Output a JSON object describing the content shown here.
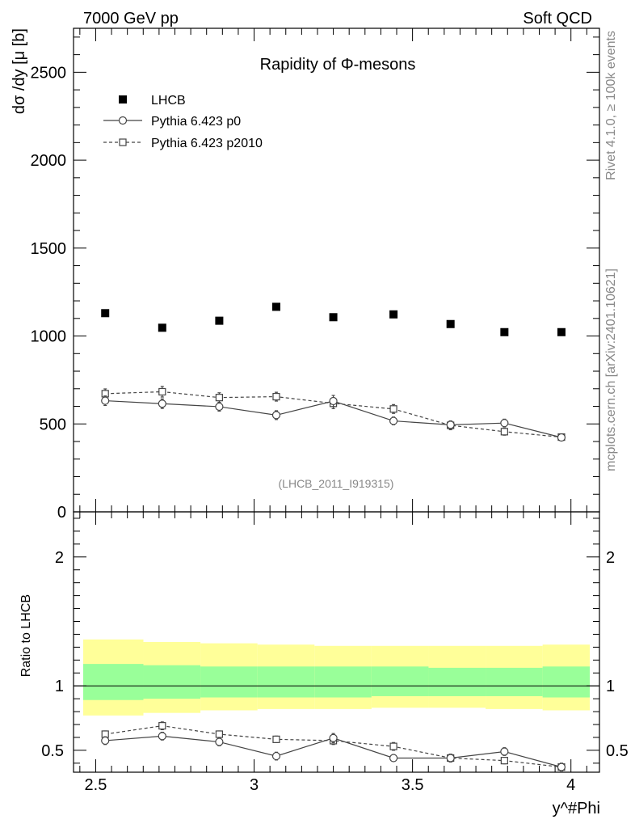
{
  "header": {
    "left": "7000 GeV pp",
    "right": "Soft QCD"
  },
  "side_labels": {
    "rivet": "Rivet 4.1.0, ≥ 100k events",
    "mcplots": "mcplots.cern.ch [arXiv:2401.10621]"
  },
  "chart_data": [
    {
      "type": "scatter",
      "title": "Rapidity of Φ-mesons",
      "xlabel": "y^#Phi",
      "ylabel": "dσ /dy [μ [b]",
      "xlim": [
        2.43,
        4.09
      ],
      "ylim": [
        0,
        2750
      ],
      "yticks": [
        0,
        500,
        1000,
        1500,
        2000,
        2500
      ],
      "ytick_labels": [
        "0",
        "500",
        "1000",
        "1500",
        "2000",
        "2500"
      ],
      "analysis_id": "(LHCB_2011_I919315)",
      "x": [
        2.53,
        2.71,
        2.89,
        3.07,
        3.25,
        3.44,
        3.62,
        3.79,
        3.97
      ],
      "series": [
        {
          "name": "LHCB",
          "marker": "filled-square",
          "values": [
            1130,
            1047,
            1087,
            1166,
            1107,
            1123,
            1068,
            1022,
            1022
          ]
        },
        {
          "name": "Pythia 6.423 p0",
          "marker": "open-circle",
          "line": "solid",
          "values": [
            632,
            615,
            598,
            550,
            630,
            517,
            495,
            505,
            423
          ],
          "errors": [
            27,
            27,
            25,
            25,
            32,
            22,
            22,
            22,
            18
          ]
        },
        {
          "name": "Pythia 6.423 p2010",
          "marker": "open-square",
          "line": "dashed",
          "values": [
            672,
            683,
            650,
            655,
            617,
            585,
            492,
            456,
            425
          ],
          "errors": [
            27,
            30,
            27,
            25,
            30,
            25,
            25,
            20,
            18
          ]
        }
      ]
    },
    {
      "type": "scatter",
      "ylabel": "Ratio to LHCB",
      "xlabel": "y^#Phi",
      "xlim": [
        2.43,
        4.09
      ],
      "ylim": [
        0.33,
        2.35
      ],
      "yticks": [
        0.5,
        1,
        2
      ],
      "ytick_labels": [
        "0.5",
        "1",
        "2"
      ],
      "xticks": [
        2.5,
        3,
        3.5,
        4
      ],
      "xtick_labels": [
        "2.5",
        "3",
        "3.5",
        "4"
      ],
      "band_edges": [
        2.43,
        2.62,
        2.8,
        2.98,
        3.16,
        3.34,
        3.52,
        3.7,
        3.88,
        4.06
      ],
      "band_inner": [
        [
          0.89,
          1.17
        ],
        [
          0.9,
          1.16
        ],
        [
          0.91,
          1.15
        ],
        [
          0.91,
          1.15
        ],
        [
          0.91,
          1.15
        ],
        [
          0.92,
          1.15
        ],
        [
          0.92,
          1.14
        ],
        [
          0.92,
          1.14
        ],
        [
          0.91,
          1.15
        ]
      ],
      "band_outer": [
        [
          0.77,
          1.36
        ],
        [
          0.79,
          1.34
        ],
        [
          0.81,
          1.33
        ],
        [
          0.82,
          1.32
        ],
        [
          0.82,
          1.31
        ],
        [
          0.83,
          1.31
        ],
        [
          0.83,
          1.31
        ],
        [
          0.82,
          1.31
        ],
        [
          0.81,
          1.32
        ]
      ],
      "band_colors": {
        "inner": "#99ff99",
        "outer": "#ffff99"
      },
      "x": [
        2.53,
        2.71,
        2.89,
        3.07,
        3.25,
        3.44,
        3.62,
        3.79,
        3.97
      ],
      "series": [
        {
          "name": "Pythia 6.423 p0",
          "marker": "open-circle",
          "line": "solid",
          "values": [
            0.575,
            0.61,
            0.565,
            0.455,
            0.595,
            0.44,
            0.44,
            0.49,
            0.37
          ],
          "errors": [
            0.03,
            0.03,
            0.03,
            0.03,
            0.035,
            0.025,
            0.03,
            0.03,
            0.03
          ]
        },
        {
          "name": "Pythia 6.423 p2010",
          "marker": "open-square",
          "line": "dashed",
          "values": [
            0.625,
            0.69,
            0.625,
            0.585,
            0.575,
            0.53,
            0.44,
            0.42,
            0.37
          ],
          "errors": [
            0.025,
            0.03,
            0.025,
            0.025,
            0.03,
            0.03,
            0.03,
            0.025,
            0.025
          ]
        }
      ]
    }
  ]
}
